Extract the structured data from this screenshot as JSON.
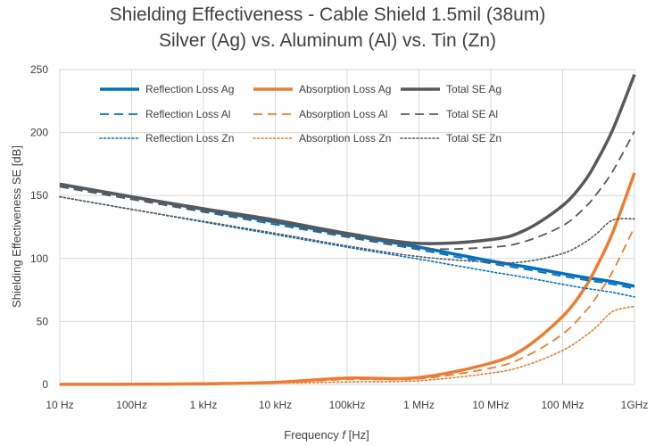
{
  "chart_data": {
    "type": "line",
    "title_line1": "Shielding Effectiveness - Cable Shield 1.5mil (38um)",
    "title_line2": "Silver (Ag) vs. Aluminum (Al) vs. Tin (Zn)",
    "xlabel_prefix": "Frequency ",
    "xlabel_var": "f",
    "xlabel_suffix": " [Hz]",
    "ylabel": "Shielding Effectiveness SE [dB]",
    "x_scale": "log10",
    "xlim": [
      10,
      1000000000
    ],
    "ylim": [
      0,
      250
    ],
    "grid": true,
    "legend_position": "top-center",
    "x_ticks": [
      {
        "value": 10,
        "label": "10 Hz"
      },
      {
        "value": 100,
        "label": "100Hz"
      },
      {
        "value": 1000,
        "label": "1 kHz"
      },
      {
        "value": 10000,
        "label": "10 kHz"
      },
      {
        "value": 100000,
        "label": "100kHz"
      },
      {
        "value": 1000000,
        "label": "1 MHz"
      },
      {
        "value": 10000000,
        "label": "10 MHz"
      },
      {
        "value": 100000000,
        "label": "100 MHz"
      },
      {
        "value": 1000000000,
        "label": "1GHz"
      }
    ],
    "y_ticks": [
      {
        "value": 0,
        "label": "0"
      },
      {
        "value": 50,
        "label": "50"
      },
      {
        "value": 100,
        "label": "100"
      },
      {
        "value": 150,
        "label": "150"
      },
      {
        "value": 200,
        "label": "200"
      },
      {
        "value": 250,
        "label": "250"
      }
    ],
    "x": [
      10,
      100,
      1000,
      10000,
      100000,
      1000000,
      10000000,
      30000000,
      100000000,
      200000000,
      300000000,
      500000000,
      1000000000
    ],
    "series": [
      {
        "name": "Reflection Loss Ag",
        "color": "#0070C0",
        "style": "solid",
        "values": [
          159,
          149,
          139,
          129,
          119,
          109,
          98,
          93.5,
          88,
          85,
          83.5,
          81.5,
          78
        ]
      },
      {
        "name": "Absorption Loss Ag",
        "color": "#ED7D31",
        "style": "solid",
        "values": [
          0.05,
          0.17,
          0.5,
          1.7,
          5,
          5.5,
          17,
          29,
          54,
          76,
          94,
          121,
          168
        ]
      },
      {
        "name": "Total SE Ag",
        "color": "#595959",
        "style": "solid",
        "values": [
          159,
          149,
          139.5,
          130.5,
          120,
          112,
          115,
          122.5,
          142,
          161,
          177.5,
          202.5,
          246
        ]
      },
      {
        "name": "Reflection Loss Al",
        "color": "#0070C0",
        "style": "dashed",
        "values": [
          157,
          147,
          137,
          127,
          117,
          107,
          96,
          91.5,
          86,
          83,
          81.5,
          79.5,
          76
        ]
      },
      {
        "name": "Absorption Loss Al",
        "color": "#ED7D31",
        "style": "dashed",
        "values": [
          0.04,
          0.13,
          0.4,
          1.3,
          4,
          4.5,
          13,
          22,
          40,
          57,
          70,
          90,
          125
        ]
      },
      {
        "name": "Total SE Al",
        "color": "#595959",
        "style": "dashed",
        "values": [
          157,
          147,
          137.5,
          128.5,
          117.5,
          108,
          109,
          113.5,
          126,
          140,
          151.5,
          169.5,
          201
        ]
      },
      {
        "name": "Reflection Loss Zn",
        "color": "#0070C0",
        "style": "dotted",
        "values": [
          149,
          139,
          129,
          119,
          109,
          99.5,
          89.5,
          85,
          79.5,
          76.5,
          75,
          73,
          69.5
        ]
      },
      {
        "name": "Absorption Loss Zn",
        "color": "#ED7D31",
        "style": "dotted",
        "values": [
          0.03,
          0.1,
          0.3,
          1,
          2,
          3,
          9,
          15,
          27,
          38,
          46,
          58,
          62
        ]
      },
      {
        "name": "Total SE Zn",
        "color": "#595959",
        "style": "dotted",
        "values": [
          149,
          139,
          129.5,
          120,
          110,
          101.5,
          97,
          97.5,
          104,
          112.5,
          120,
          130.5,
          131.5
        ]
      }
    ]
  }
}
